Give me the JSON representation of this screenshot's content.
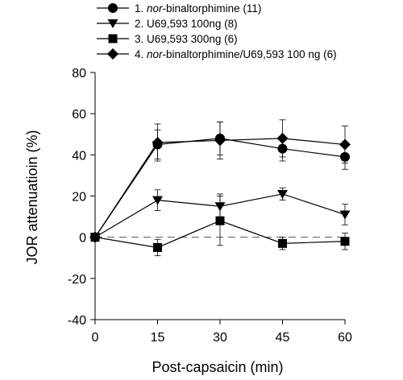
{
  "chart_data": {
    "type": "line",
    "xlabel": "Post-capsaicin (min)",
    "ylabel": "JOR attenuatioin (%)",
    "xlim": [
      0,
      60
    ],
    "ylim": [
      -40,
      80
    ],
    "x_ticks": [
      "0",
      "15",
      "30",
      "45",
      "60"
    ],
    "y_ticks": [
      "80",
      "60",
      "40",
      "20",
      "0",
      "-20",
      "-40"
    ],
    "grid": false,
    "baseline": {
      "y": 0,
      "style": "dashed"
    },
    "legend_position": "top",
    "series": [
      {
        "name": "1. nor-binaltorphimine (11)",
        "legend": {
          "prefix": "1. ",
          "italic": "nor",
          "suffix": "-binaltorphimine (11)"
        },
        "marker": "circle",
        "x": [
          0,
          15,
          30,
          45,
          60
        ],
        "values": [
          0,
          45,
          48,
          43,
          39
        ],
        "errors": [
          0,
          7,
          8,
          6,
          6
        ]
      },
      {
        "name": "2. U69,593 100ng (8)",
        "legend": {
          "prefix": "2. U69,593 100ng (8)",
          "italic": "",
          "suffix": ""
        },
        "marker": "triangle-down",
        "x": [
          0,
          15,
          30,
          45,
          60
        ],
        "values": [
          0,
          18,
          15,
          21,
          11
        ],
        "errors": [
          0,
          5,
          6,
          3,
          5
        ]
      },
      {
        "name": "3. U69,593 300ng (6)",
        "legend": {
          "prefix": "3. U69,593 300ng (6)",
          "italic": "",
          "suffix": ""
        },
        "marker": "square",
        "x": [
          0,
          15,
          30,
          45,
          60
        ],
        "values": [
          0,
          -5,
          8,
          -3,
          -2
        ],
        "errors": [
          0,
          4,
          12,
          3,
          4
        ]
      },
      {
        "name": "4. nor-binaltorphimine/U69,593 100 ng (6)",
        "legend": {
          "prefix": "4. ",
          "italic": "nor",
          "suffix": "-binaltorphimine/U69,593 100 ng (6)"
        },
        "marker": "diamond",
        "x": [
          0,
          15,
          30,
          45,
          60
        ],
        "values": [
          0,
          46,
          47,
          48,
          45
        ],
        "errors": [
          0,
          9,
          9,
          9,
          9
        ]
      }
    ]
  }
}
